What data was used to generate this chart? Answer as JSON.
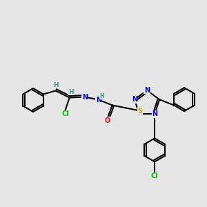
{
  "background_color": "#e6e6e6",
  "bond_color": "#000000",
  "bond_width": 1.5,
  "atoms": {
    "H": {
      "color": "#3a9a8a"
    },
    "N": {
      "color": "#0000ee"
    },
    "O": {
      "color": "#ff0000"
    },
    "S": {
      "color": "#ccaa00"
    },
    "Cl": {
      "color": "#00bb00"
    }
  }
}
